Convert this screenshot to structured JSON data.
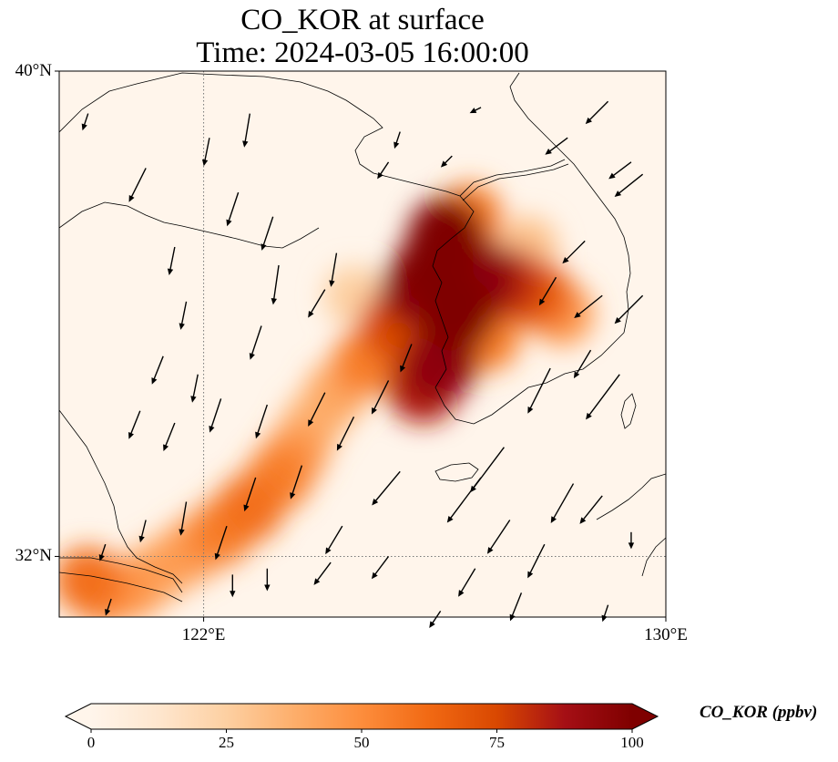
{
  "figure": {
    "title_line1": "CO_KOR at surface",
    "title_line2": "Time: 2024-03-05 16:00:00"
  },
  "map": {
    "lon_range": [
      119.5,
      130
    ],
    "lat_range": [
      31,
      40
    ],
    "lat_ticks": [
      {
        "value": 40,
        "label": "40°N"
      },
      {
        "value": 32,
        "label": "32°N"
      }
    ],
    "lon_ticks": [
      {
        "value": 122,
        "label": "122°E"
      },
      {
        "value": 130,
        "label": "130°E"
      }
    ],
    "gridlines": {
      "lon": 122,
      "lat": 32,
      "style": "dotted"
    }
  },
  "colorbar": {
    "label": "CO_KOR (ppbv)",
    "min": 0,
    "max": 100,
    "ticks": [
      {
        "value": 0,
        "label": "0"
      },
      {
        "value": 25,
        "label": "25"
      },
      {
        "value": 50,
        "label": "50"
      },
      {
        "value": 75,
        "label": "75"
      },
      {
        "value": 100,
        "label": "100"
      }
    ],
    "extend": "both",
    "colormap": [
      "#fff5eb",
      "#fee6ce",
      "#fdd0a2",
      "#fdae6b",
      "#fd8d3c",
      "#f16913",
      "#d94801",
      "#a50f15",
      "#7f0000"
    ]
  },
  "plume": [
    {
      "lon": 120.0,
      "lat": 31.6,
      "value": 60
    },
    {
      "lon": 120.3,
      "lat": 31.4,
      "value": 50
    },
    {
      "lon": 120.8,
      "lat": 31.5,
      "value": 45
    },
    {
      "lon": 121.3,
      "lat": 31.8,
      "value": 40
    },
    {
      "lon": 121.8,
      "lat": 32.1,
      "value": 45
    },
    {
      "lon": 122.3,
      "lat": 32.4,
      "value": 55
    },
    {
      "lon": 122.8,
      "lat": 32.8,
      "value": 60
    },
    {
      "lon": 123.3,
      "lat": 33.3,
      "value": 55
    },
    {
      "lon": 123.6,
      "lat": 33.7,
      "value": 45
    },
    {
      "lon": 123.9,
      "lat": 34.2,
      "value": 35
    },
    {
      "lon": 124.3,
      "lat": 34.7,
      "value": 40
    },
    {
      "lon": 124.8,
      "lat": 35.2,
      "value": 55
    },
    {
      "lon": 125.3,
      "lat": 35.8,
      "value": 75
    },
    {
      "lon": 125.7,
      "lat": 36.4,
      "value": 95
    },
    {
      "lon": 126.0,
      "lat": 36.8,
      "value": 100
    },
    {
      "lon": 126.2,
      "lat": 37.3,
      "value": 100
    },
    {
      "lon": 126.4,
      "lat": 36.0,
      "value": 100
    },
    {
      "lon": 126.1,
      "lat": 35.2,
      "value": 95
    },
    {
      "lon": 125.8,
      "lat": 34.8,
      "value": 85
    },
    {
      "lon": 126.8,
      "lat": 36.6,
      "value": 95
    },
    {
      "lon": 127.3,
      "lat": 36.5,
      "value": 80
    },
    {
      "lon": 127.8,
      "lat": 36.3,
      "value": 65
    },
    {
      "lon": 128.2,
      "lat": 36.0,
      "value": 45
    },
    {
      "lon": 126.9,
      "lat": 35.6,
      "value": 55
    },
    {
      "lon": 126.6,
      "lat": 37.6,
      "value": 55
    },
    {
      "lon": 127.6,
      "lat": 37.1,
      "value": 30
    },
    {
      "lon": 124.6,
      "lat": 36.3,
      "value": 25
    }
  ],
  "wind": [
    {
      "lon": 120.0,
      "lat": 39.3,
      "u": -0.1,
      "v": -0.3
    },
    {
      "lon": 121.0,
      "lat": 38.4,
      "u": -0.3,
      "v": -0.6
    },
    {
      "lon": 121.5,
      "lat": 37.1,
      "u": -0.1,
      "v": -0.5
    },
    {
      "lon": 121.7,
      "lat": 36.2,
      "u": -0.1,
      "v": -0.5
    },
    {
      "lon": 122.1,
      "lat": 38.9,
      "u": -0.1,
      "v": -0.5
    },
    {
      "lon": 122.8,
      "lat": 39.3,
      "u": -0.1,
      "v": -0.6
    },
    {
      "lon": 122.6,
      "lat": 38.0,
      "u": -0.2,
      "v": -0.6
    },
    {
      "lon": 123.2,
      "lat": 37.6,
      "u": -0.2,
      "v": -0.6
    },
    {
      "lon": 123.3,
      "lat": 36.8,
      "u": -0.1,
      "v": -0.7
    },
    {
      "lon": 124.1,
      "lat": 36.4,
      "u": -0.3,
      "v": -0.5
    },
    {
      "lon": 124.3,
      "lat": 37.0,
      "u": -0.1,
      "v": -0.6
    },
    {
      "lon": 125.2,
      "lat": 38.5,
      "u": -0.2,
      "v": -0.3
    },
    {
      "lon": 125.4,
      "lat": 39.0,
      "u": -0.1,
      "v": -0.3
    },
    {
      "lon": 126.3,
      "lat": 38.6,
      "u": -0.2,
      "v": -0.2
    },
    {
      "lon": 126.8,
      "lat": 39.4,
      "u": -0.2,
      "v": -0.1
    },
    {
      "lon": 128.3,
      "lat": 38.9,
      "u": -0.4,
      "v": -0.3
    },
    {
      "lon": 129.0,
      "lat": 39.5,
      "u": -0.4,
      "v": -0.4
    },
    {
      "lon": 129.4,
      "lat": 38.5,
      "u": -0.4,
      "v": -0.3
    },
    {
      "lon": 129.6,
      "lat": 38.3,
      "u": -0.5,
      "v": -0.4
    },
    {
      "lon": 128.6,
      "lat": 37.2,
      "u": -0.4,
      "v": -0.4
    },
    {
      "lon": 128.9,
      "lat": 36.3,
      "u": -0.5,
      "v": -0.4
    },
    {
      "lon": 129.6,
      "lat": 36.3,
      "u": -0.5,
      "v": -0.5
    },
    {
      "lon": 128.1,
      "lat": 36.6,
      "u": -0.3,
      "v": -0.5
    },
    {
      "lon": 128.0,
      "lat": 35.1,
      "u": -0.4,
      "v": -0.8
    },
    {
      "lon": 128.7,
      "lat": 35.4,
      "u": -0.3,
      "v": -0.5
    },
    {
      "lon": 129.2,
      "lat": 35.0,
      "u": -0.6,
      "v": -0.8
    },
    {
      "lon": 127.2,
      "lat": 33.8,
      "u": -0.6,
      "v": -0.8
    },
    {
      "lon": 126.8,
      "lat": 33.3,
      "u": -0.6,
      "v": -0.8
    },
    {
      "lon": 128.4,
      "lat": 33.2,
      "u": -0.4,
      "v": -0.7
    },
    {
      "lon": 128.9,
      "lat": 33.0,
      "u": -0.4,
      "v": -0.5
    },
    {
      "lon": 127.3,
      "lat": 32.6,
      "u": -0.4,
      "v": -0.6
    },
    {
      "lon": 127.9,
      "lat": 32.2,
      "u": -0.3,
      "v": -0.6
    },
    {
      "lon": 126.7,
      "lat": 31.8,
      "u": -0.3,
      "v": -0.5
    },
    {
      "lon": 127.5,
      "lat": 31.4,
      "u": -0.2,
      "v": -0.5
    },
    {
      "lon": 126.1,
      "lat": 31.1,
      "u": -0.2,
      "v": -0.3
    },
    {
      "lon": 129.0,
      "lat": 31.2,
      "u": -0.1,
      "v": -0.3
    },
    {
      "lon": 129.4,
      "lat": 32.4,
      "u": 0.0,
      "v": -0.3
    },
    {
      "lon": 125.2,
      "lat": 32.0,
      "u": -0.3,
      "v": -0.4
    },
    {
      "lon": 124.2,
      "lat": 31.9,
      "u": -0.3,
      "v": -0.4
    },
    {
      "lon": 124.4,
      "lat": 32.5,
      "u": -0.3,
      "v": -0.5
    },
    {
      "lon": 125.4,
      "lat": 33.4,
      "u": -0.5,
      "v": -0.6
    },
    {
      "lon": 124.6,
      "lat": 34.3,
      "u": -0.3,
      "v": -0.6
    },
    {
      "lon": 124.1,
      "lat": 34.7,
      "u": -0.3,
      "v": -0.6
    },
    {
      "lon": 125.2,
      "lat": 34.9,
      "u": -0.3,
      "v": -0.6
    },
    {
      "lon": 125.6,
      "lat": 35.5,
      "u": -0.2,
      "v": -0.5
    },
    {
      "lon": 123.0,
      "lat": 35.8,
      "u": -0.2,
      "v": -0.6
    },
    {
      "lon": 123.1,
      "lat": 34.5,
      "u": -0.2,
      "v": -0.6
    },
    {
      "lon": 122.3,
      "lat": 34.6,
      "u": -0.2,
      "v": -0.6
    },
    {
      "lon": 121.9,
      "lat": 35.0,
      "u": -0.1,
      "v": -0.5
    },
    {
      "lon": 121.3,
      "lat": 35.3,
      "u": -0.2,
      "v": -0.5
    },
    {
      "lon": 120.9,
      "lat": 34.4,
      "u": -0.2,
      "v": -0.5
    },
    {
      "lon": 121.5,
      "lat": 34.2,
      "u": -0.2,
      "v": -0.5
    },
    {
      "lon": 121.7,
      "lat": 32.9,
      "u": -0.1,
      "v": -0.6
    },
    {
      "lon": 121.0,
      "lat": 32.6,
      "u": -0.1,
      "v": -0.4
    },
    {
      "lon": 120.3,
      "lat": 32.2,
      "u": -0.1,
      "v": -0.3
    },
    {
      "lon": 122.4,
      "lat": 32.5,
      "u": -0.2,
      "v": -0.6
    },
    {
      "lon": 122.9,
      "lat": 33.3,
      "u": -0.2,
      "v": -0.6
    },
    {
      "lon": 123.1,
      "lat": 31.8,
      "u": 0.0,
      "v": -0.4
    },
    {
      "lon": 122.5,
      "lat": 31.7,
      "u": 0.0,
      "v": -0.4
    },
    {
      "lon": 123.7,
      "lat": 33.5,
      "u": -0.2,
      "v": -0.6
    },
    {
      "lon": 120.4,
      "lat": 31.3,
      "u": -0.1,
      "v": -0.3
    }
  ]
}
